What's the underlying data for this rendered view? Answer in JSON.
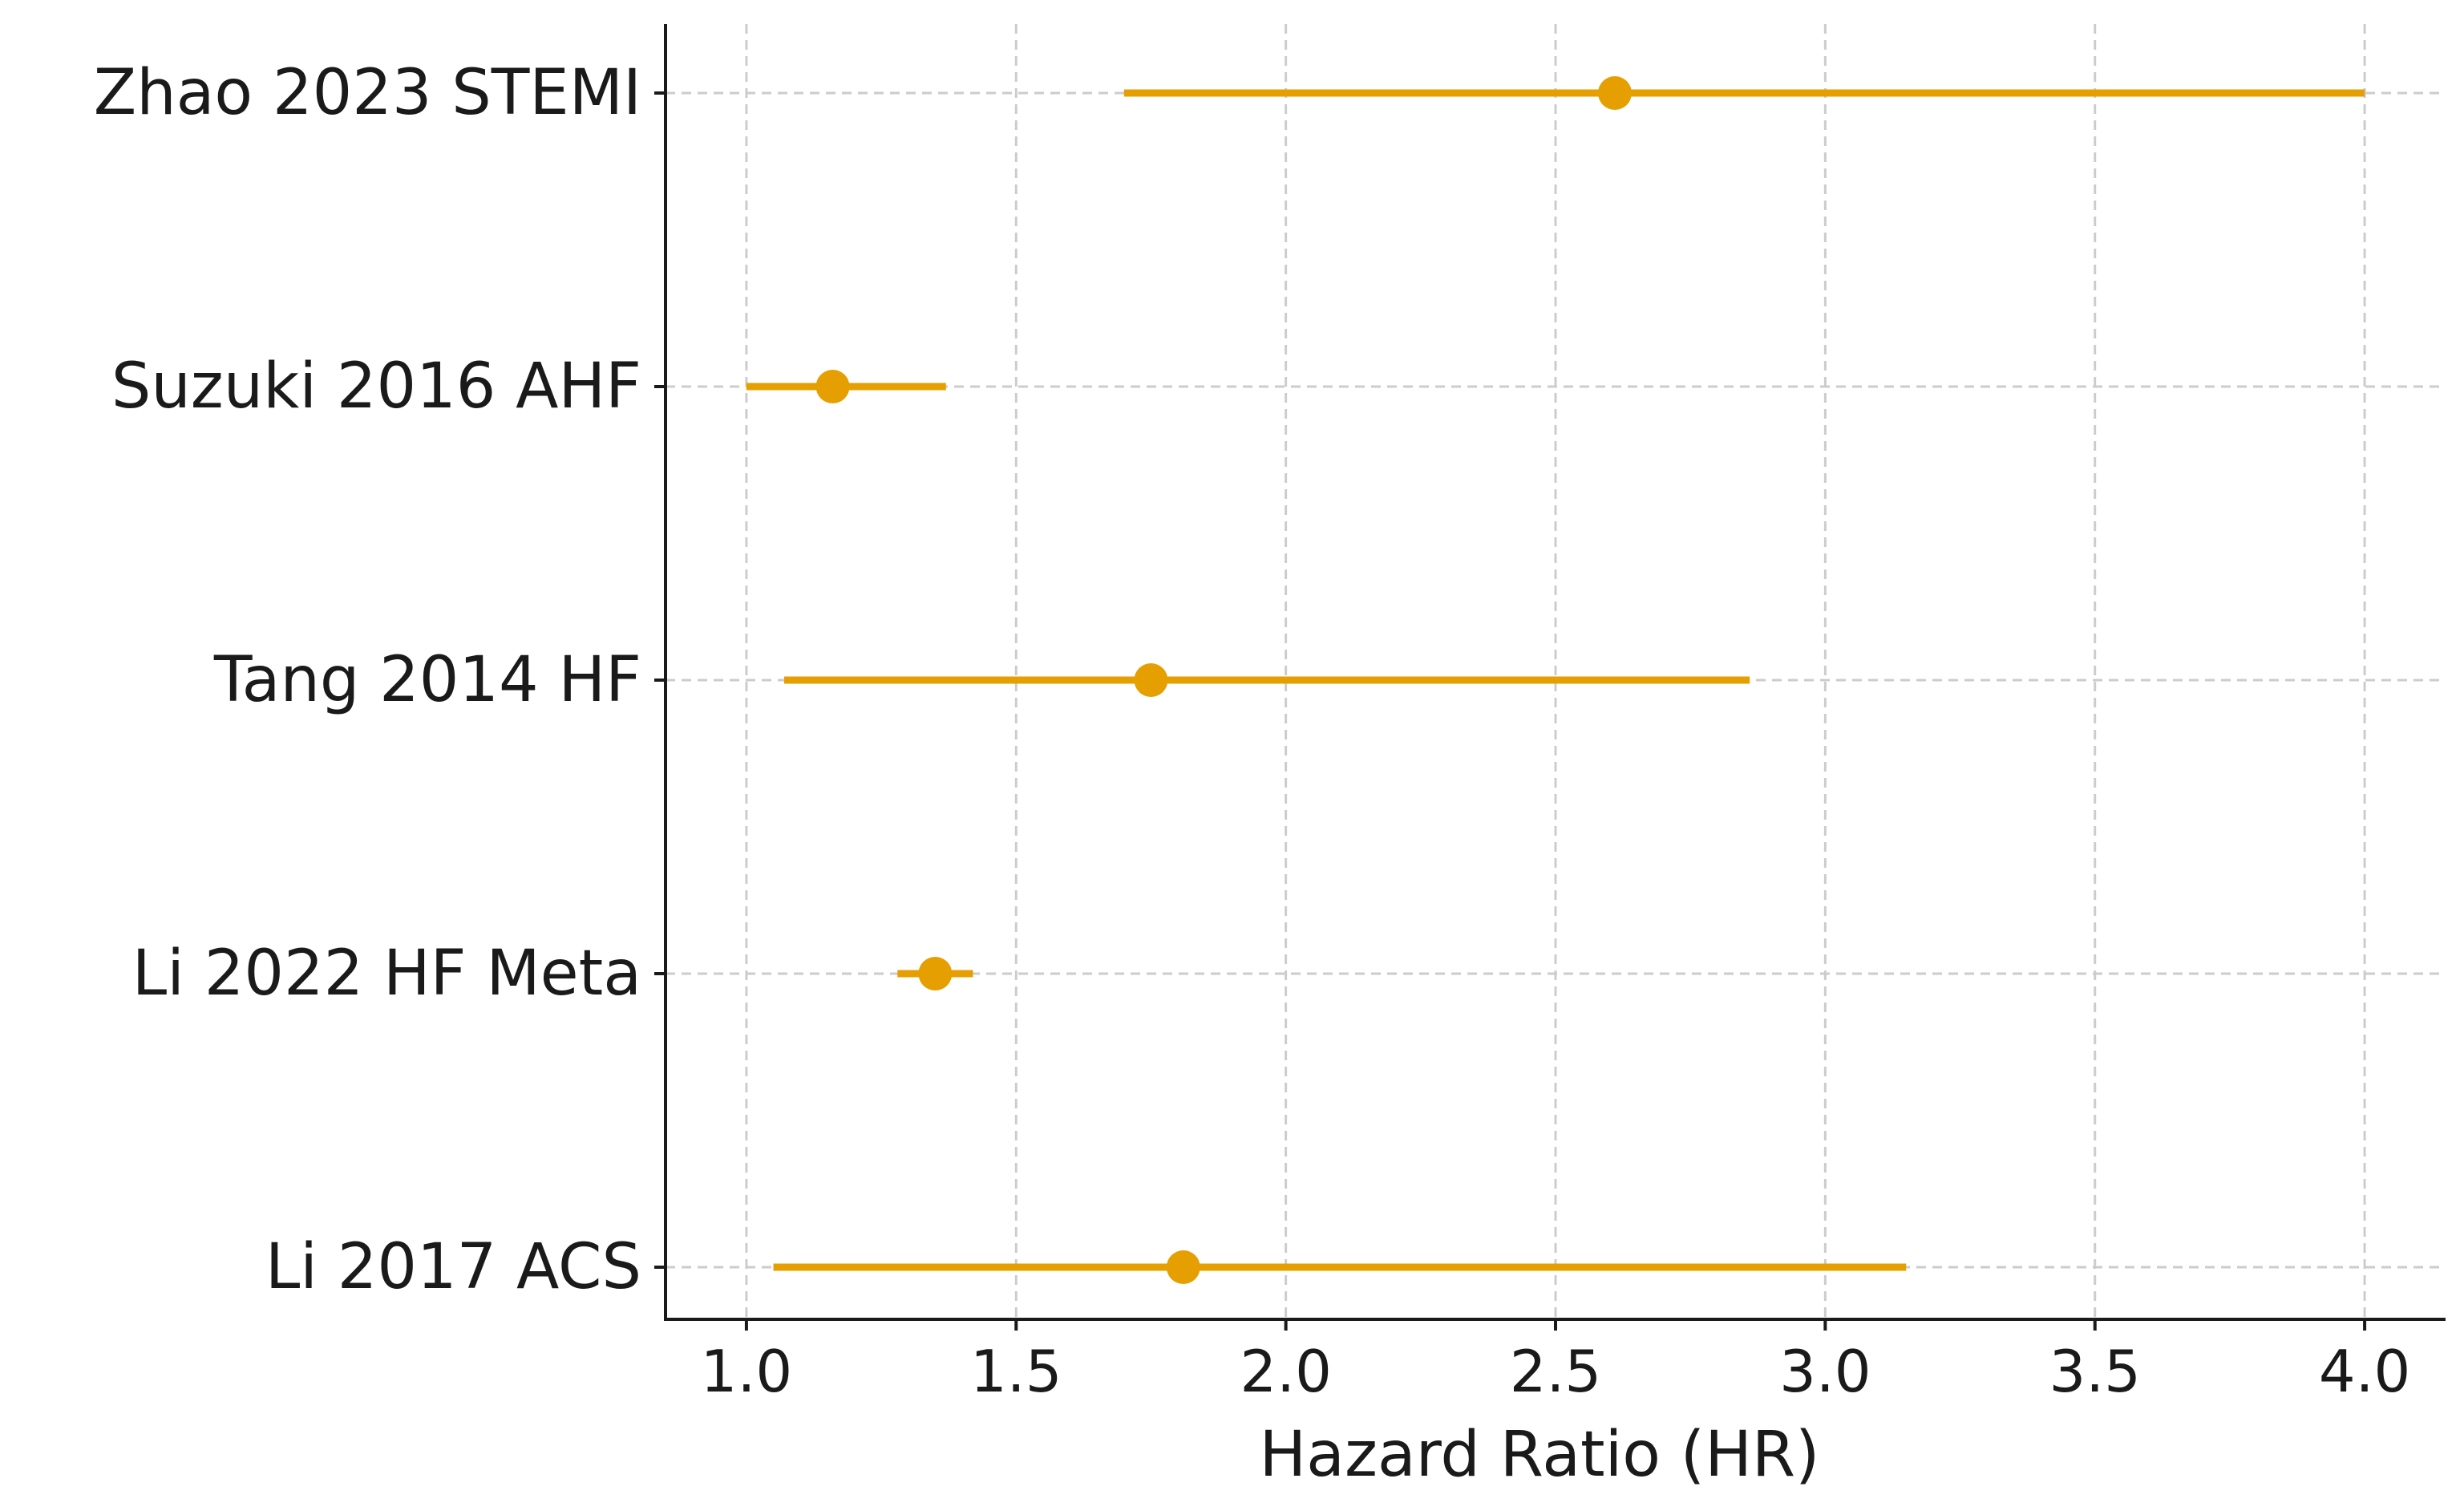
{
  "chart_data": {
    "type": "scatter",
    "subtype": "forest-plot",
    "title": "",
    "xlabel": "Hazard Ratio (HR)",
    "ylabel": "",
    "xlim": [
      0.85,
      4.15
    ],
    "xticks": [
      1.0,
      1.5,
      2.0,
      2.5,
      3.0,
      3.5,
      4.0
    ],
    "xtick_labels": [
      "1.0",
      "1.5",
      "2.0",
      "2.5",
      "3.0",
      "3.5",
      "4.0"
    ],
    "grid": true,
    "legend": "none",
    "color": "#E69F00",
    "studies": [
      {
        "label": "Zhao 2023 STEMI",
        "hr": 2.61,
        "ci_low": 1.7,
        "ci_high": 4.0
      },
      {
        "label": "Suzuki 2016 AHF",
        "hr": 1.16,
        "ci_low": 1.0,
        "ci_high": 1.37
      },
      {
        "label": "Tang 2014 HF",
        "hr": 1.75,
        "ci_low": 1.07,
        "ci_high": 2.86
      },
      {
        "label": "Li 2022 HF Meta",
        "hr": 1.35,
        "ci_low": 1.28,
        "ci_high": 1.42
      },
      {
        "label": "Li 2017 ACS",
        "hr": 1.81,
        "ci_low": 1.05,
        "ci_high": 3.15
      }
    ]
  }
}
